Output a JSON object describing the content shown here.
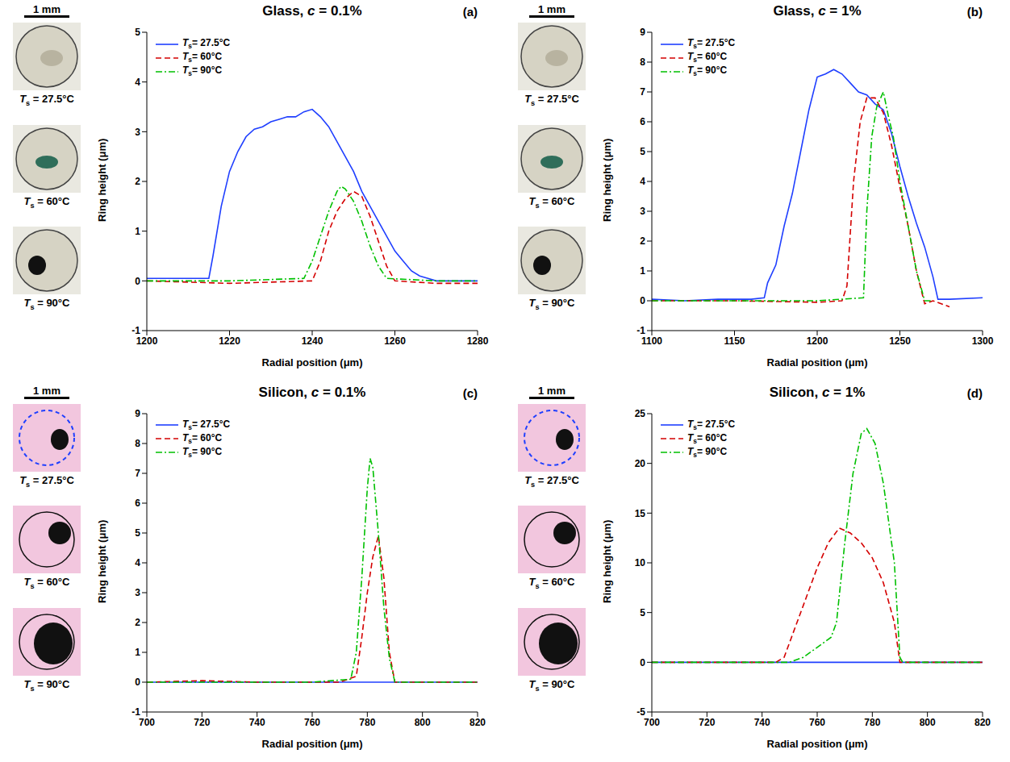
{
  "chart_data": [
    {
      "type": "line",
      "title": "Glass, c = 0.1%",
      "panel_label": "(a)",
      "scale_label": "1 mm",
      "image_labels": [
        "Ts = 27.5°C",
        "Ts = 60°C",
        "Ts = 90°C"
      ],
      "xlabel": "Radial position (μm)",
      "ylabel": "Ring height (μm)",
      "xlim": [
        1200,
        1280
      ],
      "xticks": [
        1200,
        1220,
        1240,
        1260,
        1280
      ],
      "ylim": [
        -1,
        5
      ],
      "yticks": [
        -1,
        0,
        1,
        2,
        3,
        4,
        5
      ],
      "legend": "upper left",
      "series": [
        {
          "name": "Ts= 27.5°C",
          "color": "#1f3fff",
          "line_style": "solid",
          "x": [
            1200,
            1210,
            1215,
            1216,
            1218,
            1220,
            1222,
            1224,
            1226,
            1228,
            1230,
            1232,
            1234,
            1236,
            1238,
            1240,
            1242,
            1244,
            1246,
            1248,
            1250,
            1252,
            1254,
            1256,
            1258,
            1260,
            1262,
            1264,
            1266,
            1268,
            1270,
            1280
          ],
          "values": [
            0.05,
            0.05,
            0.05,
            0.5,
            1.5,
            2.2,
            2.6,
            2.9,
            3.05,
            3.1,
            3.2,
            3.25,
            3.3,
            3.3,
            3.4,
            3.45,
            3.3,
            3.1,
            2.8,
            2.5,
            2.2,
            1.8,
            1.5,
            1.2,
            0.9,
            0.6,
            0.4,
            0.2,
            0.1,
            0.05,
            0,
            0
          ]
        },
        {
          "name": "Ts= 60°C",
          "color": "#d40000",
          "line_style": "dashed",
          "x": [
            1200,
            1220,
            1240,
            1242,
            1244,
            1246,
            1248,
            1250,
            1252,
            1254,
            1256,
            1258,
            1260,
            1270,
            1280
          ],
          "values": [
            0,
            -0.05,
            0,
            0.4,
            1.0,
            1.4,
            1.65,
            1.8,
            1.7,
            1.3,
            0.8,
            0.3,
            0,
            -0.05,
            -0.05
          ]
        },
        {
          "name": "Ts= 90°C",
          "color": "#00c000",
          "line_style": "dashdot",
          "x": [
            1200,
            1220,
            1238,
            1240,
            1242,
            1244,
            1246,
            1247,
            1248,
            1250,
            1252,
            1254,
            1256,
            1258,
            1270,
            1280
          ],
          "values": [
            0,
            0,
            0.05,
            0.4,
            0.9,
            1.4,
            1.8,
            1.9,
            1.85,
            1.6,
            1.2,
            0.7,
            0.3,
            0.05,
            0,
            0
          ]
        }
      ]
    },
    {
      "type": "line",
      "title": "Glass, c = 1%",
      "panel_label": "(b)",
      "scale_label": "1 mm",
      "image_labels": [
        "Ts = 27.5°C",
        "Ts = 60°C",
        "Ts = 90°C"
      ],
      "xlabel": "Radial position (μm)",
      "ylabel": "Ring height (μm)",
      "xlim": [
        1100,
        1300
      ],
      "xticks": [
        1100,
        1150,
        1200,
        1250,
        1300
      ],
      "ylim": [
        -1,
        9
      ],
      "yticks": [
        -1,
        0,
        1,
        2,
        3,
        4,
        5,
        6,
        7,
        8,
        9
      ],
      "legend": "upper left",
      "series": [
        {
          "name": "Ts= 27.5°C",
          "color": "#1f3fff",
          "line_style": "solid",
          "x": [
            1100,
            1120,
            1140,
            1160,
            1168,
            1170,
            1175,
            1180,
            1185,
            1190,
            1195,
            1200,
            1205,
            1210,
            1215,
            1220,
            1225,
            1230,
            1235,
            1240,
            1245,
            1250,
            1255,
            1260,
            1265,
            1270,
            1273,
            1280,
            1300
          ],
          "values": [
            0.05,
            0,
            0.05,
            0.05,
            0.1,
            0.6,
            1.2,
            2.5,
            3.6,
            5.0,
            6.4,
            7.5,
            7.6,
            7.75,
            7.6,
            7.3,
            7.0,
            6.9,
            6.6,
            6.4,
            5.6,
            4.5,
            3.5,
            2.6,
            1.8,
            0.8,
            0.05,
            0.05,
            0.1
          ]
        },
        {
          "name": "Ts= 60°C",
          "color": "#d40000",
          "line_style": "dashed",
          "x": [
            1100,
            1150,
            1200,
            1215,
            1218,
            1222,
            1226,
            1230,
            1235,
            1240,
            1245,
            1250,
            1255,
            1260,
            1265,
            1270,
            1280
          ],
          "values": [
            0,
            0,
            -0.05,
            0,
            0.5,
            4.0,
            6.0,
            6.8,
            6.8,
            6.3,
            5.2,
            3.8,
            2.5,
            1.0,
            -0.1,
            0,
            -0.2
          ]
        },
        {
          "name": "Ts= 90°C",
          "color": "#00c000",
          "line_style": "dashdot",
          "x": [
            1100,
            1150,
            1200,
            1228,
            1230,
            1233,
            1236,
            1240,
            1243,
            1246,
            1250,
            1255,
            1260,
            1265,
            1270
          ],
          "values": [
            0,
            0,
            0,
            0.1,
            3.0,
            5.5,
            6.5,
            7.0,
            6.2,
            5.5,
            4.0,
            2.5,
            1.0,
            0,
            0
          ]
        }
      ]
    },
    {
      "type": "line",
      "title": "Silicon, c = 0.1%",
      "panel_label": "(c)",
      "scale_label": "1 mm",
      "image_labels": [
        "Ts = 27.5°C",
        "Ts = 60°C",
        "Ts = 90°C"
      ],
      "xlabel": "Radial position (μm)",
      "ylabel": "Ring height (μm)",
      "xlim": [
        700,
        820
      ],
      "xticks": [
        700,
        720,
        740,
        760,
        780,
        800,
        820
      ],
      "ylim": [
        -1,
        9
      ],
      "yticks": [
        -1,
        0,
        1,
        2,
        3,
        4,
        5,
        6,
        7,
        8,
        9
      ],
      "legend": "upper left",
      "series": [
        {
          "name": "Ts= 27.5°C",
          "color": "#1f3fff",
          "line_style": "solid",
          "x": [
            700,
            820
          ],
          "values": [
            0,
            0
          ]
        },
        {
          "name": "Ts= 60°C",
          "color": "#d40000",
          "line_style": "dashed",
          "x": [
            700,
            720,
            740,
            760,
            770,
            776,
            778,
            780,
            782,
            784,
            786,
            788,
            790,
            820
          ],
          "values": [
            0,
            0.05,
            0,
            0,
            0,
            0.2,
            1.5,
            3.0,
            4.2,
            4.9,
            3.5,
            1.0,
            0,
            0
          ]
        },
        {
          "name": "Ts= 90°C",
          "color": "#00c000",
          "line_style": "dashdot",
          "x": [
            700,
            760,
            774,
            776,
            778,
            780,
            781,
            782,
            784,
            786,
            788,
            790,
            820
          ],
          "values": [
            0,
            0,
            0.1,
            1.0,
            3.5,
            6.5,
            7.5,
            7.2,
            5.0,
            2.5,
            0.8,
            0,
            0
          ]
        }
      ]
    },
    {
      "type": "line",
      "title": "Silicon, c = 1%",
      "panel_label": "(d)",
      "scale_label": "1 mm",
      "image_labels": [
        "Ts = 27.5°C",
        "Ts = 60°C",
        "Ts = 90°C"
      ],
      "xlabel": "Radial position (μm)",
      "ylabel": "Ring height (μm)",
      "xlim": [
        700,
        820
      ],
      "xticks": [
        700,
        720,
        740,
        760,
        780,
        800,
        820
      ],
      "ylim": [
        -5,
        25
      ],
      "yticks": [
        -5,
        0,
        5,
        10,
        15,
        20,
        25
      ],
      "legend": "upper left",
      "series": [
        {
          "name": "Ts= 27.5°C",
          "color": "#1f3fff",
          "line_style": "solid",
          "x": [
            700,
            820
          ],
          "values": [
            0,
            0
          ]
        },
        {
          "name": "Ts= 60°C",
          "color": "#d40000",
          "line_style": "dashed",
          "x": [
            700,
            745,
            748,
            752,
            756,
            760,
            764,
            768,
            772,
            776,
            780,
            784,
            788,
            790,
            820
          ],
          "values": [
            0,
            0,
            0.5,
            3.5,
            6.5,
            9.5,
            12,
            13.5,
            13,
            12,
            10.5,
            8,
            4,
            0,
            0
          ]
        },
        {
          "name": "Ts= 90°C",
          "color": "#00c000",
          "line_style": "dashdot",
          "x": [
            700,
            750,
            755,
            760,
            765,
            767,
            770,
            773,
            776,
            778,
            781,
            784,
            788,
            790,
            791,
            820
          ],
          "values": [
            0,
            0,
            0.5,
            1.5,
            2.5,
            4,
            12,
            19,
            23,
            23.5,
            22,
            18,
            10,
            0.5,
            0,
            0
          ]
        }
      ]
    }
  ]
}
